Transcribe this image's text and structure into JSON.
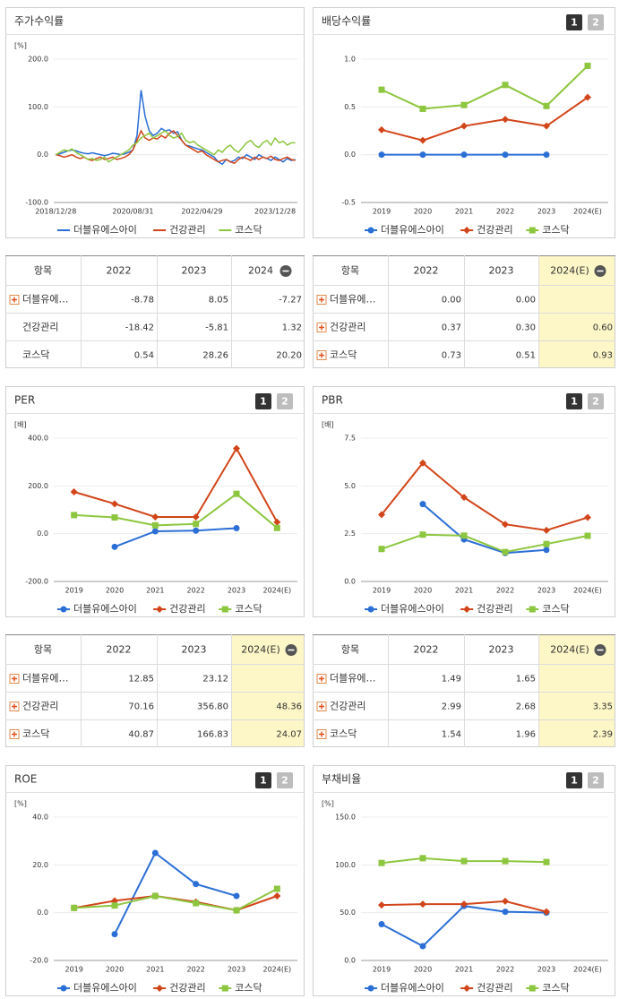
{
  "chart_data": [
    {
      "type": "line",
      "title": "주가수익률",
      "unit": "[%]",
      "markers": false,
      "categories": [
        "2018/12/28",
        null,
        null,
        null,
        null,
        null,
        null,
        null,
        null,
        null,
        null,
        null,
        null,
        null,
        null,
        null,
        null,
        null,
        null,
        "2020/08/31",
        null,
        null,
        null,
        null,
        null,
        null,
        null,
        null,
        null,
        null,
        null,
        null,
        null,
        null,
        null,
        null,
        "2022/04/29",
        null,
        null,
        null,
        null,
        null,
        null,
        null,
        null,
        null,
        null,
        null,
        null,
        null,
        null,
        null,
        null,
        null,
        "2023/12/28",
        null,
        null,
        null,
        null,
        null
      ],
      "ylim": [
        -100,
        200
      ],
      "yticks": [
        {
          "value": -100,
          "label": "-100.0"
        },
        {
          "value": 0,
          "label": "0.0"
        },
        {
          "value": 100,
          "label": "100.0"
        },
        {
          "value": 200,
          "label": "200.0"
        }
      ],
      "series": [
        {
          "name": "더블유에스아이",
          "color": "#2b6fd6",
          "values": [
            0,
            2,
            5,
            8,
            10,
            8,
            5,
            3,
            2,
            4,
            2,
            0,
            -2,
            0,
            3,
            2,
            0,
            2,
            5,
            10,
            40,
            135,
            80,
            50,
            40,
            45,
            55,
            50,
            52,
            45,
            48,
            30,
            20,
            18,
            15,
            12,
            10,
            5,
            0,
            -5,
            -15,
            -20,
            -10,
            -15,
            -12,
            -5,
            -8,
            0,
            -5,
            -10,
            0,
            -5,
            -8,
            -12,
            -5,
            -10,
            -15,
            -8,
            -12,
            -10
          ]
        },
        {
          "name": "건강관리",
          "color": "#d2451a",
          "values": [
            0,
            -2,
            -5,
            -3,
            0,
            -5,
            -8,
            -5,
            -10,
            -12,
            -8,
            -5,
            -10,
            -8,
            -5,
            -10,
            -8,
            -5,
            0,
            10,
            30,
            50,
            35,
            30,
            35,
            33,
            40,
            35,
            45,
            50,
            40,
            30,
            20,
            15,
            10,
            5,
            8,
            0,
            -5,
            -10,
            -15,
            -12,
            -10,
            -15,
            -18,
            -10,
            -5,
            -8,
            -12,
            -5,
            -10,
            -5,
            -8,
            -3,
            -10,
            -12,
            -8,
            -5,
            -10,
            -12
          ]
        },
        {
          "name": "코스닥",
          "color": "#8dc63f",
          "values": [
            0,
            5,
            10,
            8,
            12,
            5,
            0,
            -5,
            -10,
            -8,
            -12,
            -10,
            -5,
            -15,
            -10,
            -5,
            0,
            5,
            10,
            20,
            25,
            35,
            40,
            45,
            35,
            40,
            45,
            50,
            40,
            35,
            38,
            45,
            30,
            25,
            28,
            20,
            15,
            10,
            5,
            0,
            10,
            5,
            15,
            20,
            10,
            5,
            15,
            25,
            30,
            20,
            15,
            25,
            30,
            20,
            35,
            25,
            28,
            20,
            25,
            25
          ]
        }
      ]
    },
    {
      "type": "line",
      "title": "배당수익률",
      "tabs": [
        "1",
        "2"
      ],
      "markers": true,
      "categories": [
        "2019",
        "2020",
        "2021",
        "2022",
        "2023",
        "2024(E)"
      ],
      "ylim": [
        -0.5,
        1.0
      ],
      "yticks": [
        -0.5,
        {
          "value": 0,
          "label": "0.0"
        },
        0.5,
        {
          "value": 1.0,
          "label": "1.0"
        }
      ],
      "series": [
        {
          "name": "더블유에스아이",
          "color": "#2b6fd6",
          "marker": "circle",
          "values": [
            0,
            0,
            0,
            0,
            0,
            null
          ]
        },
        {
          "name": "건강관리",
          "color": "#d2451a",
          "marker": "diamond",
          "values": [
            0.26,
            0.15,
            0.3,
            0.37,
            0.3,
            0.6
          ]
        },
        {
          "name": "코스닥",
          "color": "#8dc63f",
          "marker": "square",
          "values": [
            0.68,
            0.48,
            0.52,
            0.73,
            0.51,
            0.93
          ]
        }
      ]
    },
    {
      "type": "line",
      "title": "PER",
      "tabs": [
        "1",
        "2"
      ],
      "unit": "[배]",
      "markers": true,
      "categories": [
        "2019",
        "2020",
        "2021",
        "2022",
        "2023",
        "2024(E)"
      ],
      "ylim": [
        -200,
        400
      ],
      "yticks": [
        {
          "value": -200,
          "label": "-200.0"
        },
        {
          "value": 0,
          "label": "0.0"
        },
        {
          "value": 200,
          "label": "200.0"
        },
        {
          "value": 400,
          "label": "400.0"
        }
      ],
      "series": [
        {
          "name": "더블유에스아이",
          "color": "#2b6fd6",
          "marker": "circle",
          "values": [
            null,
            -55,
            10,
            12.85,
            23.12,
            null
          ]
        },
        {
          "name": "건강관리",
          "color": "#d2451a",
          "marker": "diamond",
          "values": [
            175,
            125,
            70,
            70.16,
            356.8,
            48.36
          ]
        },
        {
          "name": "코스닥",
          "color": "#8dc63f",
          "marker": "square",
          "values": [
            78,
            68,
            35,
            40.87,
            166.83,
            24.07
          ]
        }
      ]
    },
    {
      "type": "line",
      "title": "PBR",
      "tabs": [
        "1",
        "2"
      ],
      "unit": "[배]",
      "markers": true,
      "categories": [
        "2019",
        "2020",
        "2021",
        "2022",
        "2023",
        "2024(E)"
      ],
      "ylim": [
        0,
        7.5
      ],
      "yticks": [
        {
          "value": 0,
          "label": "0.0"
        },
        2.5,
        {
          "value": 5,
          "label": "5.0"
        },
        7.5
      ],
      "series": [
        {
          "name": "더블유에스아이",
          "color": "#2b6fd6",
          "marker": "circle",
          "values": [
            null,
            4.05,
            2.2,
            1.49,
            1.65,
            null
          ]
        },
        {
          "name": "건강관리",
          "color": "#d2451a",
          "marker": "diamond",
          "values": [
            3.5,
            6.2,
            4.4,
            2.99,
            2.68,
            3.35
          ]
        },
        {
          "name": "코스닥",
          "color": "#8dc63f",
          "marker": "square",
          "values": [
            1.7,
            2.45,
            2.4,
            1.54,
            1.96,
            2.39
          ]
        }
      ]
    },
    {
      "type": "line",
      "title": "ROE",
      "tabs": [
        "1",
        "2"
      ],
      "unit": "[%]",
      "markers": true,
      "categories": [
        "2019",
        "2020",
        "2021",
        "2022",
        "2023",
        "2024(E)"
      ],
      "ylim": [
        -20,
        40
      ],
      "yticks": [
        {
          "value": -20,
          "label": "-20.0"
        },
        {
          "value": 0,
          "label": "0.0"
        },
        {
          "value": 20,
          "label": "20.0"
        },
        {
          "value": 40,
          "label": "40.0"
        }
      ],
      "series": [
        {
          "name": "더블유에스아이",
          "color": "#2b6fd6",
          "marker": "circle",
          "values": [
            null,
            -9,
            25,
            12,
            7,
            null
          ]
        },
        {
          "name": "건강관리",
          "color": "#d2451a",
          "marker": "diamond",
          "values": [
            2,
            5,
            7,
            4.5,
            1,
            7
          ]
        },
        {
          "name": "코스닥",
          "color": "#8dc63f",
          "marker": "square",
          "values": [
            2,
            3,
            7,
            4,
            1,
            10
          ]
        }
      ]
    },
    {
      "type": "line",
      "title": "부채비율",
      "tabs": [
        "1",
        "2"
      ],
      "unit": "[%]",
      "markers": true,
      "categories": [
        "2019",
        "2020",
        "2021",
        "2022",
        "2023",
        "2024(E)"
      ],
      "ylim": [
        0,
        150
      ],
      "yticks": [
        {
          "value": 0,
          "label": "0.0"
        },
        {
          "value": 50,
          "label": "50.0"
        },
        {
          "value": 100,
          "label": "100.0"
        },
        {
          "value": 150,
          "label": "150.0"
        }
      ],
      "series": [
        {
          "name": "더블유에스아이",
          "color": "#2b6fd6",
          "marker": "circle",
          "values": [
            38,
            15,
            57,
            51,
            50,
            null
          ]
        },
        {
          "name": "건강관리",
          "color": "#d2451a",
          "marker": "diamond",
          "values": [
            58,
            59,
            59,
            62,
            51,
            null
          ]
        },
        {
          "name": "코스닥",
          "color": "#8dc63f",
          "marker": "square",
          "values": [
            102,
            107,
            104,
            104,
            103,
            null
          ]
        }
      ]
    }
  ],
  "tables": [
    {
      "header": [
        "항목",
        "2022",
        "2023",
        "2024"
      ],
      "highlight_last": false,
      "rows": [
        {
          "expandable": true,
          "cells": [
            "더블유에…",
            "-8.78",
            "8.05",
            "-7.27"
          ]
        },
        {
          "expandable": false,
          "cells": [
            "건강관리",
            "-18.42",
            "-5.81",
            "1.32"
          ]
        },
        {
          "expandable": false,
          "cells": [
            "코스닥",
            "0.54",
            "28.26",
            "20.20"
          ]
        }
      ]
    },
    {
      "header": [
        "항목",
        "2022",
        "2023",
        "2024(E)"
      ],
      "highlight_last": true,
      "rows": [
        {
          "expandable": true,
          "cells": [
            "더블유에…",
            "0.00",
            "0.00",
            null
          ]
        },
        {
          "expandable": true,
          "cells": [
            "건강관리",
            "0.37",
            "0.30",
            "0.60"
          ]
        },
        {
          "expandable": true,
          "cells": [
            "코스닥",
            "0.73",
            "0.51",
            "0.93"
          ]
        }
      ]
    },
    {
      "header": [
        "항목",
        "2022",
        "2023",
        "2024(E)"
      ],
      "highlight_last": true,
      "rows": [
        {
          "expandable": true,
          "cells": [
            "더블유에…",
            "12.85",
            "23.12",
            null
          ]
        },
        {
          "expandable": true,
          "cells": [
            "건강관리",
            "70.16",
            "356.80",
            "48.36"
          ]
        },
        {
          "expandable": true,
          "cells": [
            "코스닥",
            "40.87",
            "166.83",
            "24.07"
          ]
        }
      ]
    },
    {
      "header": [
        "항목",
        "2022",
        "2023",
        "2024(E)"
      ],
      "highlight_last": true,
      "rows": [
        {
          "expandable": true,
          "cells": [
            "더블유에…",
            "1.49",
            "1.65",
            null
          ]
        },
        {
          "expandable": true,
          "cells": [
            "건강관리",
            "2.99",
            "2.68",
            "3.35"
          ]
        },
        {
          "expandable": true,
          "cells": [
            "코스닥",
            "1.54",
            "1.96",
            "2.39"
          ]
        }
      ]
    }
  ]
}
